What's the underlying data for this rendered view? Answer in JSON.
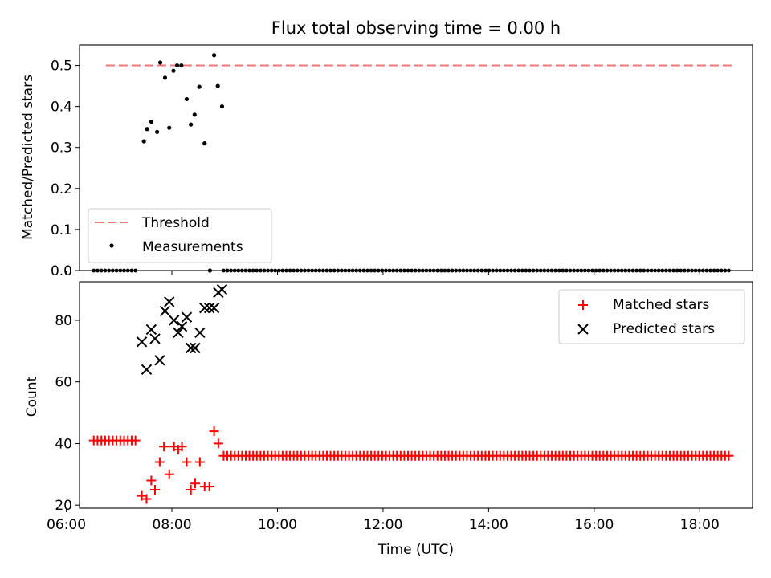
{
  "chart_data": [
    {
      "type": "scatter",
      "title": "Flux total observing time = 0.00 h",
      "xlabel": "",
      "ylabel": "Matched/Predicted stars",
      "xlim": [
        6.25,
        19.0
      ],
      "ylim": [
        0.0,
        0.55
      ],
      "yticks": [
        "0.0",
        "0.1",
        "0.2",
        "0.3",
        "0.4",
        "0.5"
      ],
      "legend": {
        "placement": "lower-left",
        "entries": [
          "Threshold",
          "Measurements"
        ]
      },
      "threshold": {
        "name": "Threshold",
        "value": 0.5,
        "x_start": 6.75,
        "x_end": 18.67,
        "color": "#f07878"
      },
      "series": [
        {
          "name": "Measurements",
          "marker": "dot",
          "color": "#000000",
          "points": [
            [
              7.47,
              0.315
            ],
            [
              7.53,
              0.345
            ],
            [
              7.61,
              0.363
            ],
            [
              7.72,
              0.338
            ],
            [
              7.78,
              0.507
            ],
            [
              7.87,
              0.47
            ],
            [
              7.95,
              0.348
            ],
            [
              8.03,
              0.487
            ],
            [
              8.1,
              0.5
            ],
            [
              8.18,
              0.5
            ],
            [
              8.28,
              0.418
            ],
            [
              8.36,
              0.356
            ],
            [
              8.43,
              0.38
            ],
            [
              8.52,
              0.448
            ],
            [
              8.62,
              0.31
            ],
            [
              8.8,
              0.525
            ],
            [
              8.87,
              0.45
            ],
            [
              8.95,
              0.4
            ],
            [
              8.72,
              0.0
            ]
          ],
          "zero_runs": [
            {
              "from": 6.52,
              "to": 7.31,
              "count": 12
            },
            {
              "from": 8.98,
              "to": 18.55,
              "count": 138
            }
          ]
        }
      ]
    },
    {
      "type": "scatter",
      "title": "",
      "xlabel": "Time (UTC)",
      "ylabel": "Count",
      "xlim": [
        6.25,
        19.0
      ],
      "ylim": [
        19.0,
        92.5
      ],
      "xticks": [
        "06:00",
        "08:00",
        "10:00",
        "12:00",
        "14:00",
        "16:00",
        "18:00"
      ],
      "yticks": [
        "20",
        "40",
        "60",
        "80"
      ],
      "legend": {
        "placement": "upper-right",
        "entries": [
          "Matched stars",
          "Predicted stars"
        ]
      },
      "series": [
        {
          "name": "Matched stars",
          "marker": "plus",
          "color": "#ff0000",
          "points": [
            [
              7.43,
              23
            ],
            [
              7.52,
              22
            ],
            [
              7.61,
              28
            ],
            [
              7.68,
              25
            ],
            [
              7.77,
              34
            ],
            [
              7.85,
              39
            ],
            [
              7.95,
              30
            ],
            [
              8.04,
              39
            ],
            [
              8.12,
              38
            ],
            [
              8.19,
              39
            ],
            [
              8.28,
              34
            ],
            [
              8.36,
              25
            ],
            [
              8.44,
              27
            ],
            [
              8.53,
              34
            ],
            [
              8.62,
              26
            ],
            [
              8.71,
              26
            ],
            [
              8.8,
              44
            ],
            [
              8.88,
              40
            ]
          ],
          "runs": [
            {
              "from": 6.52,
              "to": 7.31,
              "count": 12,
              "value": 41
            },
            {
              "from": 8.98,
              "to": 18.55,
              "count": 138,
              "value": 36
            }
          ]
        },
        {
          "name": "Predicted stars",
          "marker": "x",
          "color": "#000000",
          "points": [
            [
              7.43,
              73
            ],
            [
              7.52,
              64
            ],
            [
              7.61,
              77
            ],
            [
              7.68,
              74
            ],
            [
              7.77,
              67
            ],
            [
              7.87,
              83
            ],
            [
              7.95,
              86
            ],
            [
              8.04,
              80
            ],
            [
              8.12,
              76
            ],
            [
              8.19,
              78
            ],
            [
              8.28,
              81
            ],
            [
              8.36,
              71
            ],
            [
              8.44,
              71
            ],
            [
              8.53,
              76
            ],
            [
              8.62,
              84
            ],
            [
              8.71,
              84
            ],
            [
              8.8,
              84
            ],
            [
              8.88,
              89
            ],
            [
              8.95,
              90
            ]
          ]
        }
      ]
    }
  ]
}
